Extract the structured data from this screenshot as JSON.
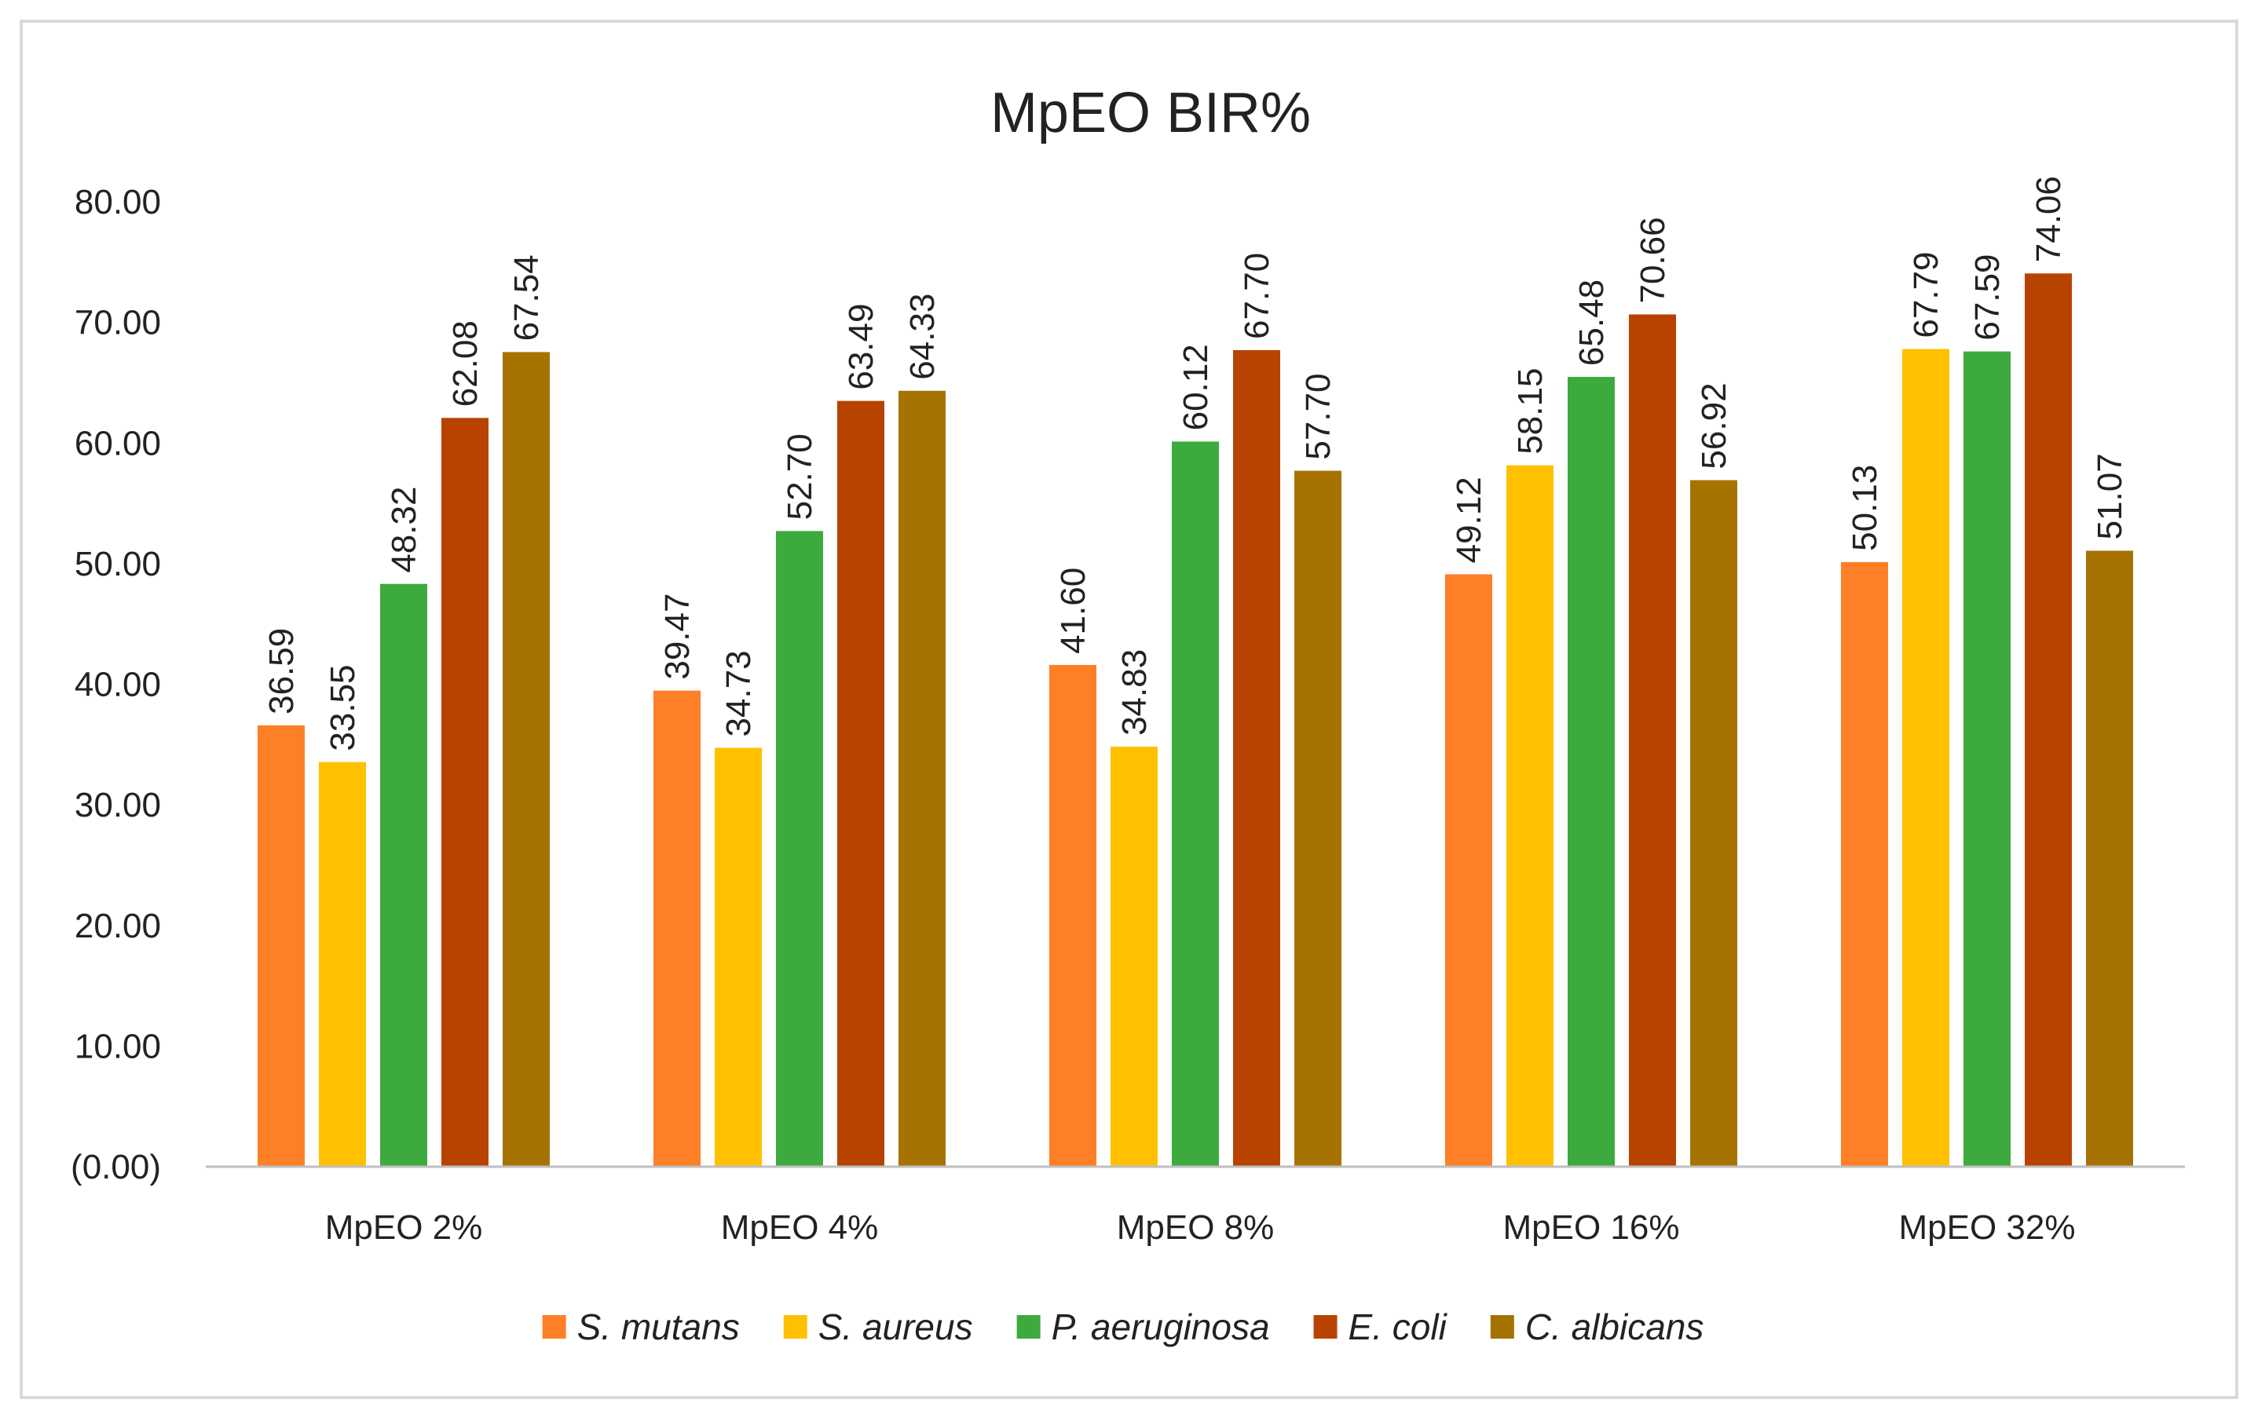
{
  "chart_data": {
    "type": "bar",
    "title": "MpEO BIR%",
    "xlabel": "",
    "ylabel": "",
    "ylim": [
      0,
      80
    ],
    "yticks": [
      "(0.00)",
      "10.00",
      "20.00",
      "30.00",
      "40.00",
      "50.00",
      "60.00",
      "70.00",
      "80.00"
    ],
    "ytick_values": [
      0,
      10,
      20,
      30,
      40,
      50,
      60,
      70,
      80
    ],
    "categories": [
      "MpEO 2%",
      "MpEO 4%",
      "MpEO 8%",
      "MpEO 16%",
      "MpEO 32%"
    ],
    "series": [
      {
        "name": "S. mutans",
        "color": "#FF7F27",
        "values": [
          36.59,
          39.47,
          41.6,
          49.12,
          50.13
        ],
        "labels": [
          "36.59",
          "39.47",
          "41.60",
          "49.12",
          "50.13"
        ]
      },
      {
        "name": "S. aureus",
        "color": "#FFC000",
        "values": [
          33.55,
          34.73,
          34.83,
          58.15,
          67.79
        ],
        "labels": [
          "33.55",
          "34.73",
          "34.83",
          "58.15",
          "67.79"
        ]
      },
      {
        "name": "P. aeruginosa",
        "color": "#3DAA3D",
        "values": [
          48.32,
          52.7,
          60.12,
          65.48,
          67.59
        ],
        "labels": [
          "48.32",
          "52.70",
          "60.12",
          "65.48",
          "67.59"
        ]
      },
      {
        "name": "E. coli",
        "color": "#B84300",
        "values": [
          62.08,
          63.49,
          67.7,
          70.66,
          74.06
        ],
        "labels": [
          "62.08",
          "63.49",
          "67.70",
          "70.66",
          "74.06"
        ]
      },
      {
        "name": "C. albicans",
        "color": "#A67300",
        "values": [
          67.54,
          64.33,
          57.7,
          56.92,
          51.07
        ],
        "labels": [
          "67.54",
          "64.33",
          "57.70",
          "56.92",
          "51.07"
        ]
      }
    ],
    "grid": false,
    "legend_position": "bottom",
    "data_labels": "rotated-vertical",
    "frame_color": "#D9D9D9",
    "axis_color": "#BFBFBF"
  }
}
